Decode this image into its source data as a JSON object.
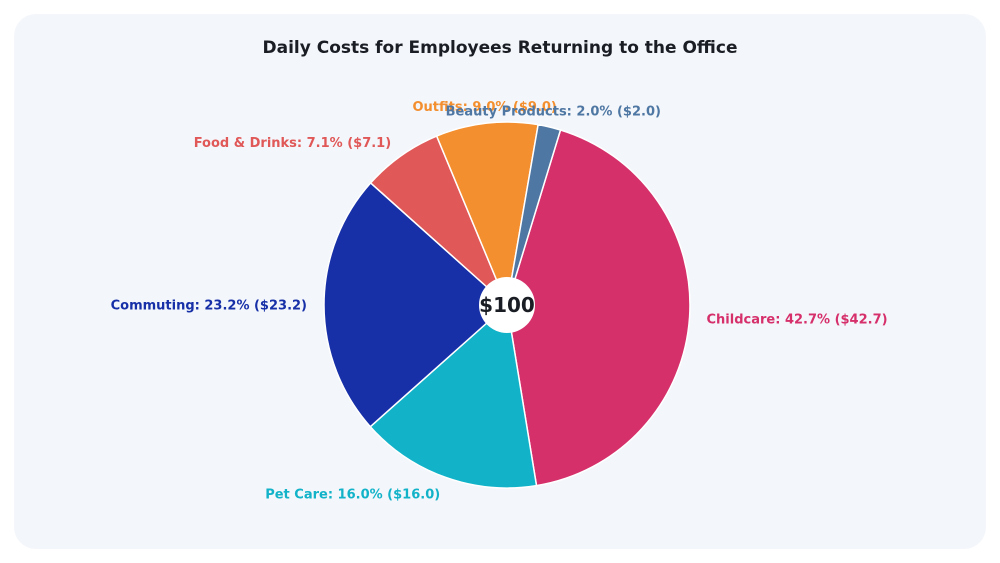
{
  "chart_data": {
    "type": "pie",
    "title": "Daily Costs for Employees Returning to the Office",
    "center_label": "$100",
    "start_angle_deg": 17,
    "direction": "clockwise",
    "slices": [
      {
        "name": "Childcare",
        "percent": 42.7,
        "value": 42.7,
        "label": "Childcare: 42.7% ($42.7)",
        "color": "#d6306b"
      },
      {
        "name": "Pet Care",
        "percent": 16.0,
        "value": 16.0,
        "label": "Pet Care: 16.0% ($16.0)",
        "color": "#12b3c9"
      },
      {
        "name": "Commuting",
        "percent": 23.2,
        "value": 23.2,
        "label": "Commuting: 23.2% ($23.2)",
        "color": "#1730a8"
      },
      {
        "name": "Food & Drinks",
        "percent": 7.1,
        "value": 7.1,
        "label": "Food & Drinks: 7.1% ($7.1)",
        "color": "#e05858"
      },
      {
        "name": "Outfits",
        "percent": 9.0,
        "value": 9.0,
        "label": "Outfits: 9.0% ($9.0)",
        "color": "#f38f2f"
      },
      {
        "name": "Beauty Products",
        "percent": 2.0,
        "value": 2.0,
        "label": "Beauty Products: 2.0% ($2.0)",
        "color": "#4f77a3"
      }
    ]
  }
}
